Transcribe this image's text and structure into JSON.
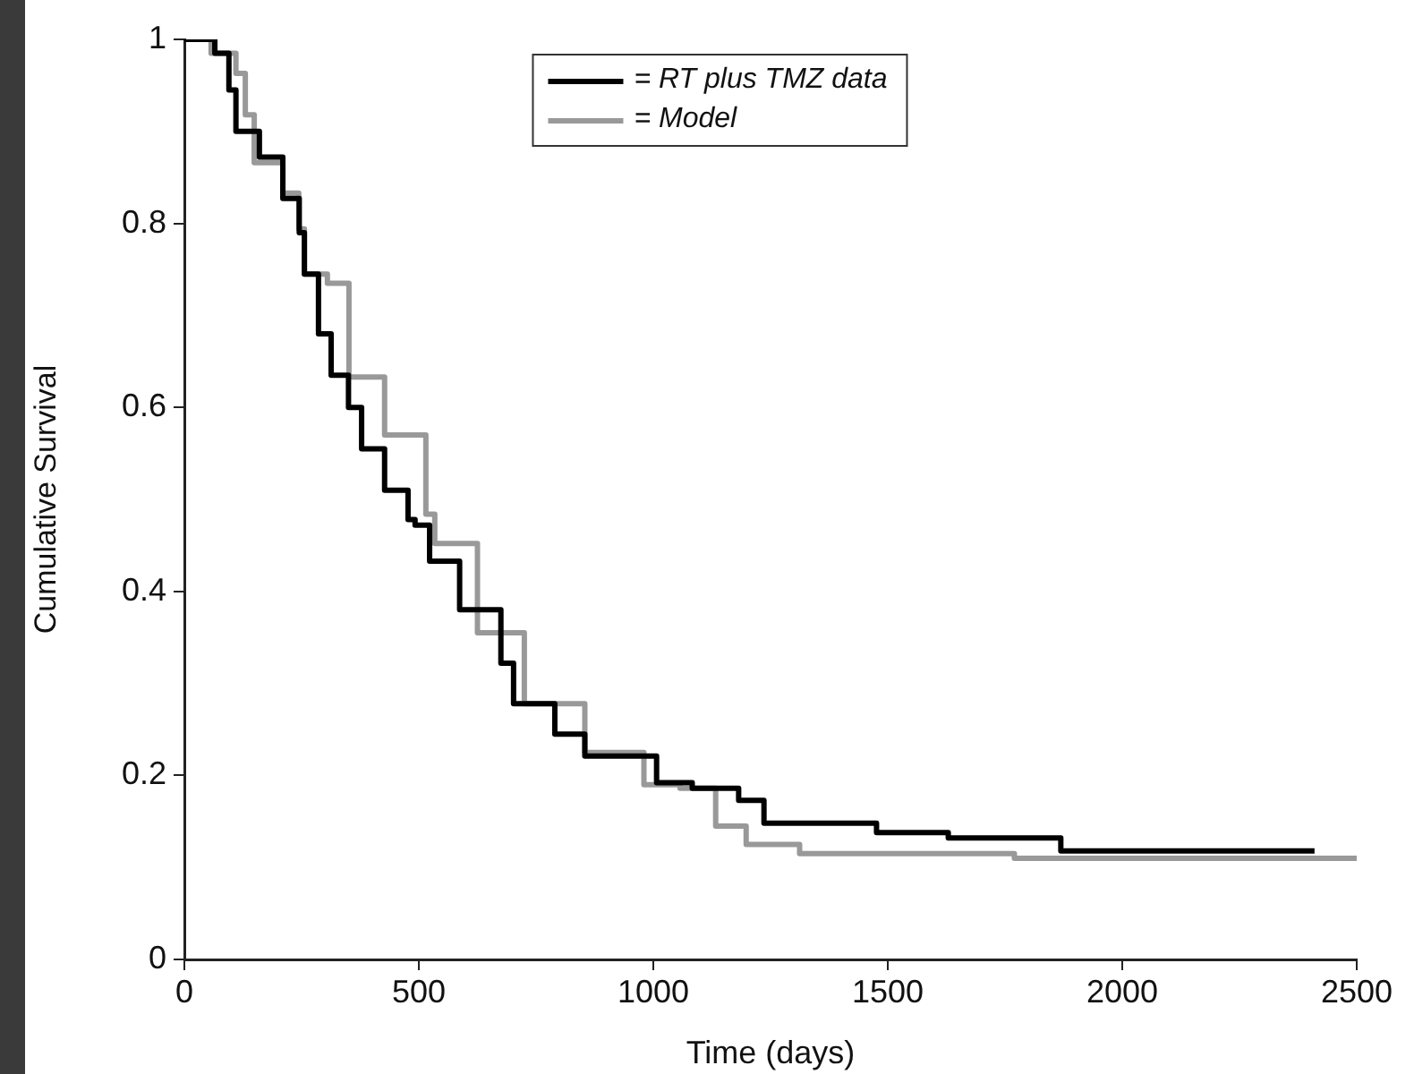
{
  "chart_data": {
    "type": "step",
    "xlabel": "Time (days)",
    "ylabel": "Cumulative Survival",
    "xlim": [
      0,
      2500
    ],
    "xticks": [
      0,
      500,
      1000,
      1500,
      2000,
      2500
    ],
    "ylim": [
      0,
      1
    ],
    "yticks": [
      0,
      0.2,
      0.4,
      0.6,
      0.8,
      1
    ],
    "legend": "top",
    "series": [
      {
        "name": "= RT plus TMZ data",
        "color": "#000000",
        "x": [
          0,
          45,
          65,
          95,
          110,
          160,
          210,
          245,
          256,
          286,
          313,
          350,
          378,
          427,
          477,
          492,
          523,
          587,
          675,
          702,
          790,
          854,
          1007,
          1083,
          1182,
          1236,
          1476,
          1629,
          1869,
          2410
        ],
        "values": [
          1,
          1,
          0.985,
          0.945,
          0.9,
          0.872,
          0.827,
          0.79,
          0.745,
          0.68,
          0.635,
          0.6,
          0.555,
          0.51,
          0.478,
          0.472,
          0.433,
          0.38,
          0.322,
          0.278,
          0.245,
          0.221,
          0.192,
          0.186,
          0.173,
          0.148,
          0.138,
          0.132,
          0.118,
          0.118
        ]
      },
      {
        "name": "= Model",
        "color": "#999999",
        "x": [
          0,
          57,
          110,
          130,
          149,
          210,
          244,
          256,
          305,
          351,
          427,
          515,
          534,
          625,
          725,
          854,
          980,
          1057,
          1133,
          1198,
          1312,
          1770,
          2500
        ],
        "values": [
          1,
          0.985,
          0.963,
          0.918,
          0.866,
          0.833,
          0.794,
          0.745,
          0.735,
          0.633,
          0.57,
          0.484,
          0.452,
          0.355,
          0.278,
          0.225,
          0.19,
          0.186,
          0.145,
          0.125,
          0.115,
          0.11,
          0.11
        ]
      }
    ]
  }
}
